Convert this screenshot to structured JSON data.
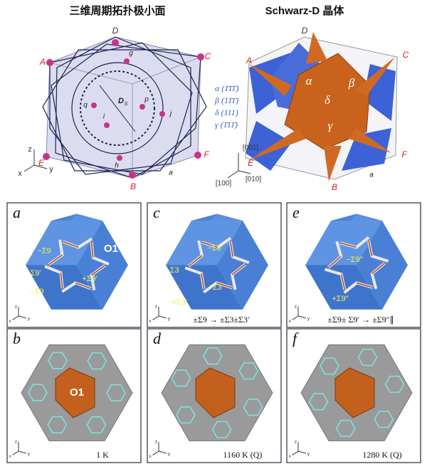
{
  "top_left": {
    "title": "三维周期拓扑极小面",
    "vertices": [
      "D",
      "A",
      "C",
      "E",
      "F",
      "B"
    ],
    "points": [
      "g",
      "q",
      "i",
      "p",
      "j",
      "h"
    ],
    "center": "D",
    "center_sub": "S",
    "edge": "a"
  },
  "top_right": {
    "title": "Schwarz-D 晶体",
    "vertices": [
      "D",
      "A",
      "C",
      "E",
      "F",
      "B"
    ],
    "regions": [
      "α",
      "β",
      "δ",
      "γ"
    ],
    "legend": [
      "α (1̄1̄1̄)",
      "β (11̄1̄)",
      "δ (111)",
      "γ (1̄11̄)"
    ],
    "directions": [
      "[001]",
      "[100]",
      "[010]"
    ],
    "edge": "a"
  },
  "axes": [
    "z",
    "x",
    "y"
  ],
  "panels": [
    {
      "label": "a",
      "annotations": [
        "O1",
        "−Σ9",
        "Σ9′",
        "+Σ9′",
        "−Σ9"
      ]
    },
    {
      "label": "c",
      "annotations": [
        "−Σ3′",
        "−Σ3",
        "+Σ3",
        "+Σ3′"
      ],
      "caption": "±Σ9 → ±Σ3±Σ3′"
    },
    {
      "label": "e",
      "annotations": [
        "−Σ9″",
        "+Σ9″"
      ],
      "caption": "±Σ9± Σ9′ → ±Σ9″∥"
    },
    {
      "label": "b",
      "annotations": [
        "O1"
      ],
      "caption": "1 K"
    },
    {
      "label": "d",
      "caption": "1160 K (Q)"
    },
    {
      "label": "f",
      "caption": "1280 K (Q)"
    }
  ]
}
